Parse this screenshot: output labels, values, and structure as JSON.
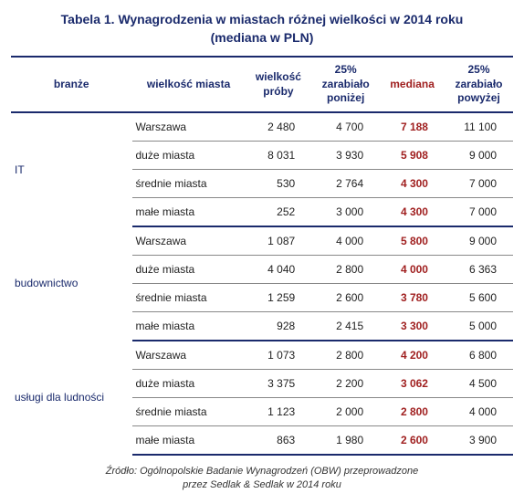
{
  "title_line1": "Tabela 1. Wynagrodzenia w miastach różnej wielkości w 2014 roku",
  "title_line2": "(mediana w PLN)",
  "columns": {
    "branch": "branże",
    "city": "wielkość miasta",
    "sample": "wielkość próby",
    "p25low": "25% zarabiało poniżej",
    "median": "mediana",
    "p25high": "25% zarabiało powyżej"
  },
  "groups": [
    {
      "branch": "IT",
      "rows": [
        {
          "city": "Warszawa",
          "sample": "2 480",
          "p25low": "4 700",
          "median": "7 188",
          "p25high": "11 100"
        },
        {
          "city": "duże miasta",
          "sample": "8 031",
          "p25low": "3 930",
          "median": "5 908",
          "p25high": "9 000"
        },
        {
          "city": "średnie miasta",
          "sample": "530",
          "p25low": "2 764",
          "median": "4 300",
          "p25high": "7 000"
        },
        {
          "city": "małe miasta",
          "sample": "252",
          "p25low": "3 000",
          "median": "4 300",
          "p25high": "7 000"
        }
      ]
    },
    {
      "branch": "budownictwo",
      "rows": [
        {
          "city": "Warszawa",
          "sample": "1 087",
          "p25low": "4 000",
          "median": "5 800",
          "p25high": "9 000"
        },
        {
          "city": "duże miasta",
          "sample": "4 040",
          "p25low": "2 800",
          "median": "4 000",
          "p25high": "6 363"
        },
        {
          "city": "średnie miasta",
          "sample": "1 259",
          "p25low": "2 600",
          "median": "3 780",
          "p25high": "5 600"
        },
        {
          "city": "małe miasta",
          "sample": "928",
          "p25low": "2 415",
          "median": "3 300",
          "p25high": "5 000"
        }
      ]
    },
    {
      "branch": "usługi dla ludności",
      "rows": [
        {
          "city": "Warszawa",
          "sample": "1 073",
          "p25low": "2 800",
          "median": "4 200",
          "p25high": "6 800"
        },
        {
          "city": "duże miasta",
          "sample": "3 375",
          "p25low": "2 200",
          "median": "3 062",
          "p25high": "4 500"
        },
        {
          "city": "średnie miasta",
          "sample": "1 123",
          "p25low": "2 000",
          "median": "2 800",
          "p25high": "4 000"
        },
        {
          "city": "małe miasta",
          "sample": "863",
          "p25low": "1 980",
          "median": "2 600",
          "p25high": "3 900"
        }
      ]
    }
  ],
  "source_line1": "Źródło: Ogólnopolskie Badanie Wynagrodzeń (OBW) przeprowadzone",
  "source_line2": "przez Sedlak & Sedlak w 2014 roku",
  "style": {
    "header_color": "#1a2a6c",
    "median_color": "#a02020",
    "thick_border": "#1a2a6c",
    "thin_border": "#888",
    "background": "#ffffff",
    "font_family": "Verdana",
    "title_fontsize": 14,
    "body_fontsize": 12,
    "source_fontsize": 11
  }
}
